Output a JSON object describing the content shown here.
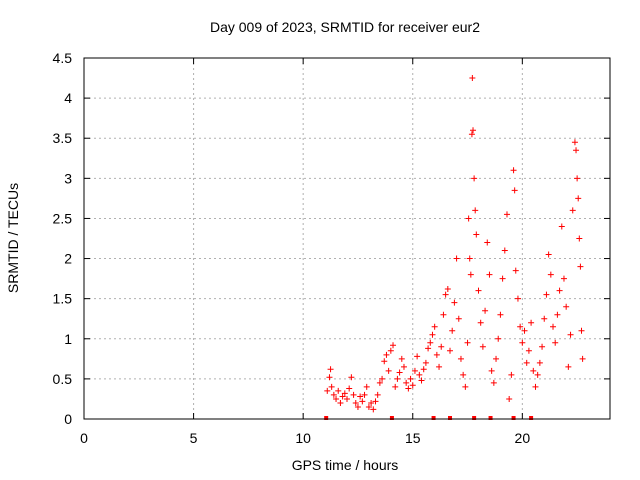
{
  "chart_data": {
    "type": "scatter",
    "title": "Day 009 of 2023, SRMTID for receiver eur2",
    "xlabel": "GPS time / hours",
    "ylabel": "SRMTID / TECUs",
    "xlim": [
      0,
      24
    ],
    "ylim": [
      0,
      4.5
    ],
    "xticks": [
      0,
      5,
      10,
      15,
      20
    ],
    "xtick_labels": [
      "0",
      "5",
      "10",
      "15",
      "20"
    ],
    "yticks": [
      0,
      0.5,
      1,
      1.5,
      2,
      2.5,
      3,
      3.5,
      4,
      4.5
    ],
    "ytick_labels": [
      "0",
      "0.5",
      "1",
      "1.5",
      "2",
      "2.5",
      "3",
      "3.5",
      "4",
      "4.5"
    ],
    "grid": true,
    "marker": "plus",
    "color": "#ff0000",
    "series": [
      {
        "name": "SRMTID",
        "points": [
          [
            11.1,
            0.35
          ],
          [
            11.2,
            0.52
          ],
          [
            11.25,
            0.62
          ],
          [
            11.3,
            0.4
          ],
          [
            11.4,
            0.3
          ],
          [
            11.5,
            0.25
          ],
          [
            11.6,
            0.35
          ],
          [
            11.7,
            0.2
          ],
          [
            11.8,
            0.28
          ],
          [
            11.9,
            0.32
          ],
          [
            12.0,
            0.25
          ],
          [
            12.1,
            0.38
          ],
          [
            12.2,
            0.52
          ],
          [
            12.3,
            0.3
          ],
          [
            12.4,
            0.2
          ],
          [
            12.5,
            0.15
          ],
          [
            12.6,
            0.28
          ],
          [
            12.7,
            0.22
          ],
          [
            12.8,
            0.3
          ],
          [
            12.9,
            0.4
          ],
          [
            13.0,
            0.15
          ],
          [
            13.1,
            0.2
          ],
          [
            13.2,
            0.12
          ],
          [
            13.3,
            0.22
          ],
          [
            13.4,
            0.3
          ],
          [
            13.5,
            0.45
          ],
          [
            13.6,
            0.5
          ],
          [
            13.7,
            0.72
          ],
          [
            13.8,
            0.8
          ],
          [
            13.9,
            0.6
          ],
          [
            14.0,
            0.85
          ],
          [
            14.1,
            0.92
          ],
          [
            14.2,
            0.4
          ],
          [
            14.3,
            0.5
          ],
          [
            14.4,
            0.58
          ],
          [
            14.5,
            0.75
          ],
          [
            14.6,
            0.65
          ],
          [
            14.7,
            0.45
          ],
          [
            14.8,
            0.38
          ],
          [
            14.9,
            0.5
          ],
          [
            15.0,
            0.42
          ],
          [
            15.1,
            0.6
          ],
          [
            15.2,
            0.78
          ],
          [
            15.3,
            0.55
          ],
          [
            15.4,
            0.48
          ],
          [
            15.5,
            0.62
          ],
          [
            15.6,
            0.7
          ],
          [
            15.7,
            0.88
          ],
          [
            15.8,
            0.95
          ],
          [
            15.9,
            1.05
          ],
          [
            16.0,
            1.15
          ],
          [
            16.1,
            0.8
          ],
          [
            16.2,
            0.65
          ],
          [
            16.3,
            0.9
          ],
          [
            16.4,
            1.3
          ],
          [
            16.5,
            1.55
          ],
          [
            16.6,
            1.62
          ],
          [
            16.7,
            0.85
          ],
          [
            16.8,
            1.1
          ],
          [
            16.9,
            1.45
          ],
          [
            17.0,
            2.0
          ],
          [
            17.1,
            1.25
          ],
          [
            17.2,
            0.75
          ],
          [
            17.3,
            0.55
          ],
          [
            17.4,
            0.4
          ],
          [
            17.5,
            0.95
          ],
          [
            17.55,
            2.5
          ],
          [
            17.6,
            2.0
          ],
          [
            17.65,
            1.8
          ],
          [
            17.7,
            3.55
          ],
          [
            17.72,
            4.25
          ],
          [
            17.75,
            3.6
          ],
          [
            17.8,
            3.0
          ],
          [
            17.85,
            2.6
          ],
          [
            17.9,
            2.3
          ],
          [
            18.0,
            1.6
          ],
          [
            18.1,
            1.2
          ],
          [
            18.2,
            0.9
          ],
          [
            18.3,
            1.35
          ],
          [
            18.4,
            2.2
          ],
          [
            18.5,
            1.8
          ],
          [
            18.6,
            0.6
          ],
          [
            18.7,
            0.45
          ],
          [
            18.8,
            0.75
          ],
          [
            18.9,
            1.0
          ],
          [
            19.0,
            1.3
          ],
          [
            19.1,
            1.75
          ],
          [
            19.2,
            2.1
          ],
          [
            19.3,
            2.55
          ],
          [
            19.4,
            0.25
          ],
          [
            19.5,
            0.55
          ],
          [
            19.6,
            3.1
          ],
          [
            19.65,
            2.85
          ],
          [
            19.7,
            1.85
          ],
          [
            19.8,
            1.5
          ],
          [
            19.9,
            1.15
          ],
          [
            20.0,
            0.95
          ],
          [
            20.1,
            1.1
          ],
          [
            20.2,
            0.7
          ],
          [
            20.3,
            0.85
          ],
          [
            20.4,
            1.2
          ],
          [
            20.5,
            0.6
          ],
          [
            20.6,
            0.4
          ],
          [
            20.7,
            0.55
          ],
          [
            20.8,
            0.7
          ],
          [
            20.9,
            0.9
          ],
          [
            21.0,
            1.25
          ],
          [
            21.1,
            1.55
          ],
          [
            21.2,
            2.05
          ],
          [
            21.3,
            1.8
          ],
          [
            21.4,
            1.15
          ],
          [
            21.5,
            0.95
          ],
          [
            21.6,
            1.3
          ],
          [
            21.7,
            1.6
          ],
          [
            21.8,
            2.4
          ],
          [
            21.9,
            1.75
          ],
          [
            22.0,
            1.4
          ],
          [
            22.1,
            0.65
          ],
          [
            22.2,
            1.05
          ],
          [
            22.3,
            2.6
          ],
          [
            22.4,
            3.45
          ],
          [
            22.45,
            3.35
          ],
          [
            22.5,
            3.0
          ],
          [
            22.55,
            2.75
          ],
          [
            22.6,
            2.25
          ],
          [
            22.65,
            1.9
          ],
          [
            22.7,
            1.1
          ],
          [
            22.75,
            0.75
          ]
        ]
      }
    ],
    "baseline_markers_x": [
      11.05,
      14.05,
      15.95,
      16.7,
      17.8,
      18.55,
      19.6,
      20.4
    ]
  }
}
